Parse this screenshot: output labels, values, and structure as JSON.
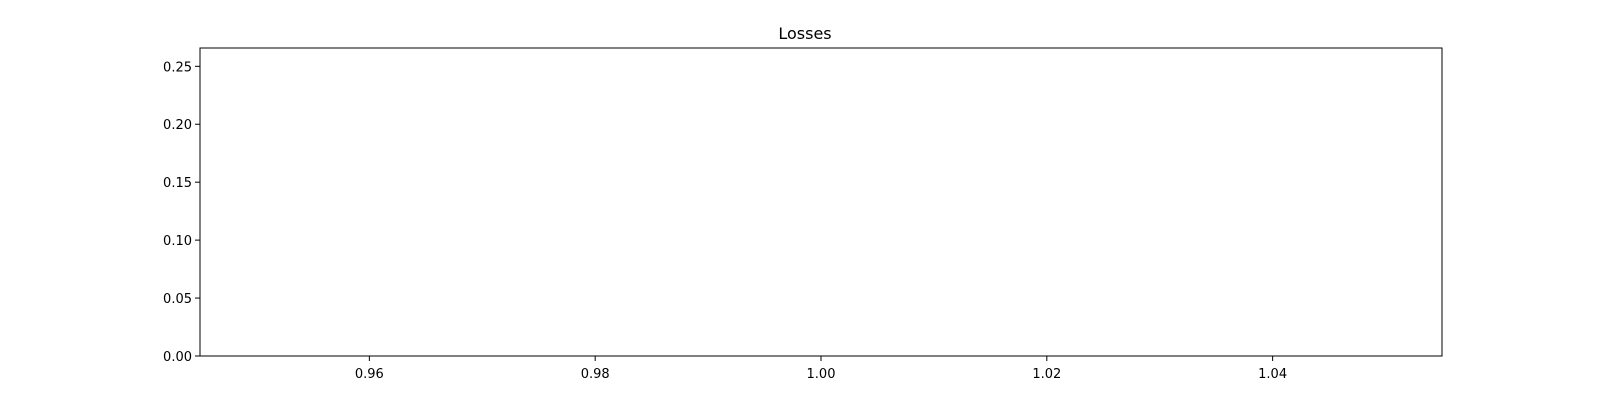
{
  "chart_data": {
    "type": "line",
    "title": "Losses",
    "xlabel": "",
    "ylabel": "",
    "xlim": [
      0.945,
      1.055
    ],
    "ylim": [
      0,
      0.2658
    ],
    "x_ticks": [
      {
        "value": 0.96,
        "label": "0.96"
      },
      {
        "value": 0.98,
        "label": "0.98"
      },
      {
        "value": 1.0,
        "label": "1.00"
      },
      {
        "value": 1.02,
        "label": "1.02"
      },
      {
        "value": 1.04,
        "label": "1.04"
      }
    ],
    "y_ticks": [
      {
        "value": 0.0,
        "label": "0.00"
      },
      {
        "value": 0.05,
        "label": "0.05"
      },
      {
        "value": 0.1,
        "label": "0.10"
      },
      {
        "value": 0.15,
        "label": "0.15"
      },
      {
        "value": 0.2,
        "label": "0.20"
      },
      {
        "value": 0.25,
        "label": "0.25"
      }
    ],
    "series": [],
    "grid": false,
    "legend": "none",
    "colors": {
      "axes": "#000000",
      "background": "#ffffff"
    }
  }
}
